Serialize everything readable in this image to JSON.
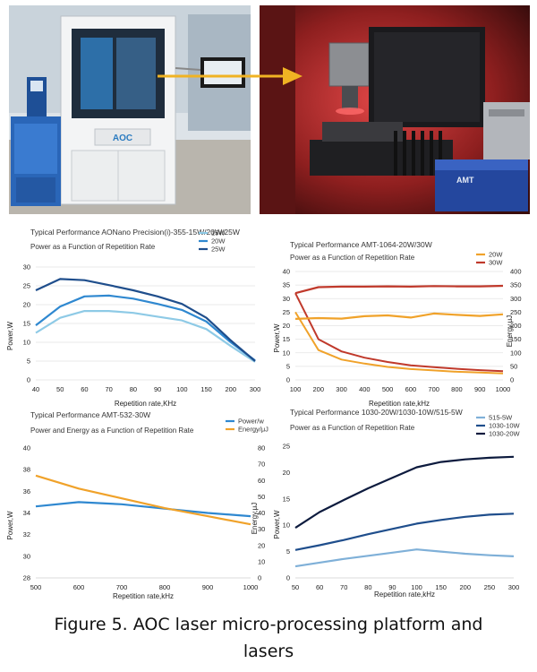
{
  "photos": {
    "left_platform": {
      "logo_text": "AOC"
    },
    "right_laser": {
      "device_text": "AMT"
    }
  },
  "caption": {
    "line1": "Figure 5. AOC laser micro-processing platform and",
    "line2": "lasers"
  },
  "colors": {
    "arrow": "#f0b323",
    "light_blue": "#8ecae6",
    "mid_blue": "#2f88d0",
    "dark_blue": "#1f4e8c",
    "orange": "#f0a22a",
    "red": "#c0392b",
    "navy": "#0d1b3e"
  },
  "chart_data": [
    {
      "type": "line",
      "title": "Typical Performance AONano Precision(i)-355-15W/20W/25W",
      "subtitle": "Power as a Function of Repetition Rate",
      "xlabel": "Repetition rate,KHz",
      "ylabel": "Power,W",
      "categories": [
        "40",
        "50",
        "60",
        "70",
        "80",
        "90",
        "100",
        "150",
        "200",
        "300"
      ],
      "ylim": [
        0,
        30
      ],
      "yticks": [
        "0",
        "5",
        "10",
        "15",
        "20",
        "25",
        "30"
      ],
      "grid": true,
      "legend": "top-right",
      "series": [
        {
          "name": "15W",
          "color": "#8ecae6",
          "values": [
            12.5,
            16.5,
            18.3,
            18.3,
            17.8,
            16.8,
            15.8,
            13.5,
            9.0,
            4.8
          ]
        },
        {
          "name": "20W",
          "color": "#2f88d0",
          "values": [
            14.5,
            19.5,
            22.2,
            22.4,
            21.6,
            20.2,
            18.6,
            15.5,
            10.0,
            5.2
          ]
        },
        {
          "name": "25W",
          "color": "#1f4e8c",
          "values": [
            23.8,
            26.8,
            26.5,
            25.2,
            23.8,
            22.2,
            20.2,
            16.5,
            10.5,
            5.0
          ]
        }
      ]
    },
    {
      "type": "line",
      "title": "Typical Performance AMT-1064-20W/30W",
      "subtitle": "Power as a Function of Repetition Rate",
      "xlabel": "Repetition rate,kHz",
      "ylabel": "Power,W",
      "ylabel_right": "Energy,μJ",
      "categories": [
        "100",
        "200",
        "300",
        "400",
        "500",
        "600",
        "700",
        "800",
        "900",
        "1000"
      ],
      "ylim": [
        0,
        40
      ],
      "yticks": [
        "0",
        "5",
        "10",
        "15",
        "20",
        "25",
        "30",
        "35",
        "40"
      ],
      "ylim_right": [
        0,
        400
      ],
      "yticks_right": [
        "0",
        "50",
        "100",
        "150",
        "200",
        "250",
        "300",
        "350",
        "400"
      ],
      "grid": true,
      "legend": "top-right",
      "series": [
        {
          "name": "20W",
          "color": "#f0a22a",
          "values": [
            22.5,
            22.8,
            22.6,
            23.5,
            23.8,
            23.0,
            24.5,
            24.0,
            23.6,
            24.2
          ]
        },
        {
          "name": "30W",
          "color": "#c0392b",
          "values": [
            32.0,
            34.2,
            34.4,
            34.4,
            34.5,
            34.4,
            34.6,
            34.5,
            34.5,
            34.7
          ]
        }
      ],
      "energy_series": [
        {
          "color": "#f0a22a",
          "values": [
            250,
            110,
            75,
            60,
            48,
            40,
            35,
            30,
            27,
            24
          ]
        },
        {
          "color": "#c0392b",
          "values": [
            320,
            150,
            105,
            82,
            66,
            54,
            47,
            41,
            36,
            32
          ]
        }
      ]
    },
    {
      "type": "line",
      "title": "Typical Performance AMT-532-30W",
      "subtitle": "Power and Energy as a Function of Repetition Rate",
      "xlabel": "Repetition rate,kHz",
      "ylabel": "Power,W",
      "ylabel_right": "Energy,μJ",
      "categories": [
        "500",
        "600",
        "700",
        "800",
        "900",
        "1000"
      ],
      "ylim": [
        28,
        40
      ],
      "yticks": [
        "28",
        "30",
        "32",
        "34",
        "36",
        "38",
        "40"
      ],
      "ylim_right": [
        0,
        80
      ],
      "yticks_right": [
        "0",
        "10",
        "20",
        "30",
        "40",
        "50",
        "60",
        "70",
        "80"
      ],
      "grid": false,
      "legend": "top-right",
      "series": [
        {
          "name": "Power/w",
          "color": "#2f88d0",
          "axis": "left",
          "values": [
            34.6,
            35.0,
            34.8,
            34.4,
            34.0,
            33.7
          ]
        },
        {
          "name": "Energy/μJ",
          "color": "#f0a22a",
          "axis": "right",
          "values": [
            63,
            55,
            49,
            43,
            38,
            33
          ]
        }
      ]
    },
    {
      "type": "line",
      "title": "Typical Performance 1030-20W/1030-10W/515-5W",
      "subtitle": "Power as a Function of Repetition Rate",
      "xlabel": "Repetition rate,kHz",
      "ylabel": "Power,W",
      "categories": [
        "50",
        "60",
        "70",
        "80",
        "90",
        "100",
        "150",
        "200",
        "250",
        "300"
      ],
      "ylim": [
        0,
        25
      ],
      "yticks": [
        "0",
        "5",
        "10",
        "15",
        "20",
        "25"
      ],
      "grid": false,
      "legend": "top-right",
      "series": [
        {
          "name": "515-5W",
          "color": "#7fb0d8",
          "values": [
            2.2,
            2.9,
            3.6,
            4.2,
            4.8,
            5.4,
            5.0,
            4.6,
            4.3,
            4.1
          ]
        },
        {
          "name": "1030-10W",
          "color": "#1f4e8c",
          "values": [
            5.3,
            6.2,
            7.2,
            8.3,
            9.3,
            10.3,
            11.0,
            11.6,
            12.0,
            12.2
          ]
        },
        {
          "name": "1030-20W",
          "color": "#0d1b3e",
          "values": [
            9.5,
            12.5,
            14.8,
            17.0,
            19.0,
            21.0,
            22.0,
            22.5,
            22.8,
            23.0
          ]
        }
      ]
    }
  ]
}
